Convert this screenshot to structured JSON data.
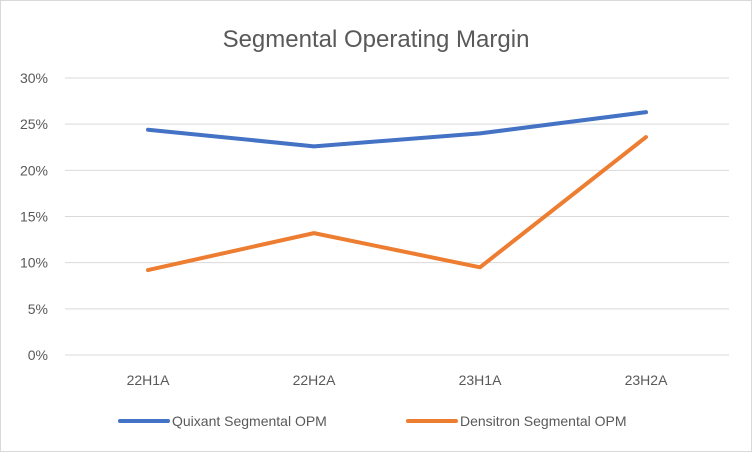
{
  "chart_data": {
    "type": "line",
    "title": "Segmental Operating Margin",
    "xlabel": "",
    "ylabel": "",
    "categories": [
      "22H1A",
      "22H2A",
      "23H1A",
      "23H2A"
    ],
    "ylim": [
      0,
      30
    ],
    "yticks": [
      0,
      5,
      10,
      15,
      20,
      25,
      30
    ],
    "ytick_labels": [
      "0%",
      "5%",
      "10%",
      "15%",
      "20%",
      "25%",
      "30%"
    ],
    "grid": true,
    "legend_position": "bottom",
    "series": [
      {
        "name": "Quixant Segmental OPM",
        "color": "#4472c4",
        "values": [
          24.4,
          22.6,
          24.0,
          26.3
        ]
      },
      {
        "name": "Densitron Segmental OPM",
        "color": "#ed7d31",
        "values": [
          9.2,
          13.2,
          9.5,
          23.6
        ]
      }
    ]
  }
}
